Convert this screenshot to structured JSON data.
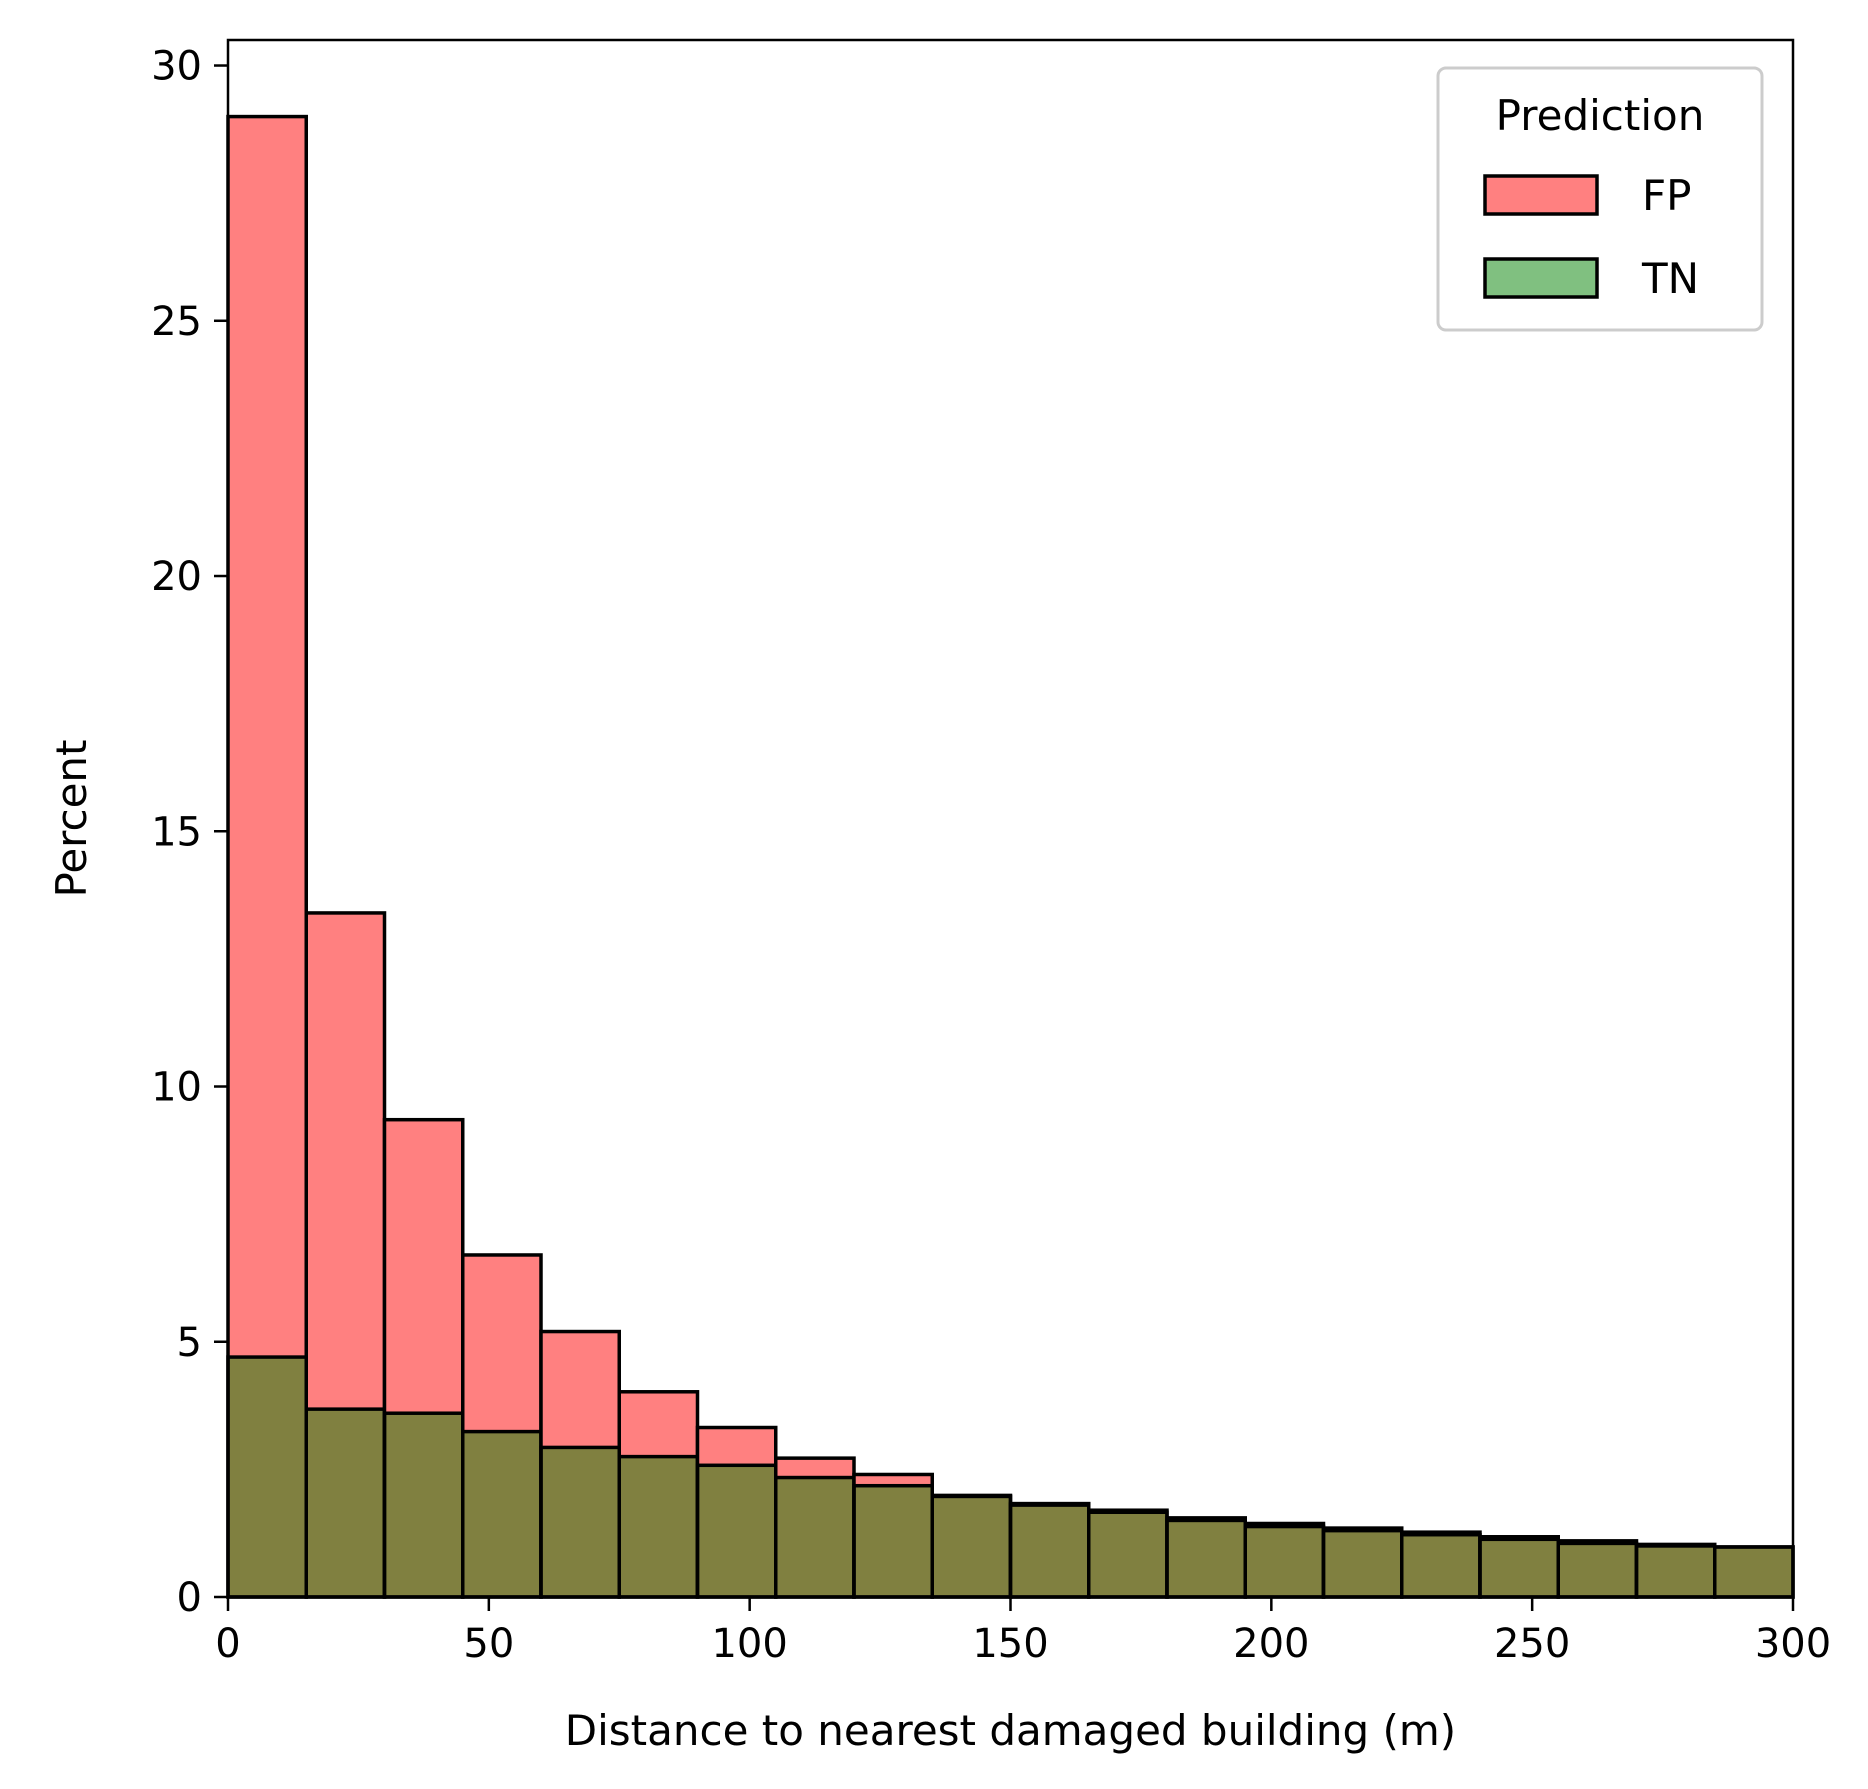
{
  "chart_data": {
    "type": "histogram",
    "xlabel": "Distance to nearest damaged building (m)",
    "ylabel": "Percent",
    "xlim": [
      0,
      300
    ],
    "ylim": [
      0,
      30.5
    ],
    "xticks": [
      "0",
      "50",
      "100",
      "150",
      "200",
      "250",
      "300"
    ],
    "xtick_values": [
      0,
      50,
      100,
      150,
      200,
      250,
      300
    ],
    "yticks": [
      "0",
      "5",
      "10",
      "15",
      "20",
      "25",
      "30"
    ],
    "ytick_values": [
      0,
      5,
      10,
      15,
      20,
      25,
      30
    ],
    "grid": false,
    "bin_edges": [
      0,
      15,
      30,
      45,
      60,
      75,
      90,
      105,
      120,
      135,
      150,
      165,
      180,
      195,
      210,
      225,
      240,
      255,
      270,
      285,
      300
    ],
    "legend": {
      "title": "Prediction",
      "position": "top-right"
    },
    "series": [
      {
        "name": "FP",
        "color": "#ff8080",
        "values": [
          29.0,
          13.4,
          9.35,
          6.7,
          5.2,
          4.02,
          3.32,
          2.72,
          2.4,
          1.99,
          1.83,
          1.7,
          1.55,
          1.44,
          1.35,
          1.27,
          1.18,
          1.1,
          1.03,
          0.98
        ]
      },
      {
        "name": "TN",
        "color": "#80c080",
        "values": [
          4.7,
          3.68,
          3.6,
          3.24,
          2.93,
          2.75,
          2.58,
          2.34,
          2.18,
          1.97,
          1.8,
          1.66,
          1.5,
          1.38,
          1.3,
          1.22,
          1.13,
          1.05,
          1.0,
          0.98
        ]
      }
    ],
    "overlap_color": "#808040"
  }
}
